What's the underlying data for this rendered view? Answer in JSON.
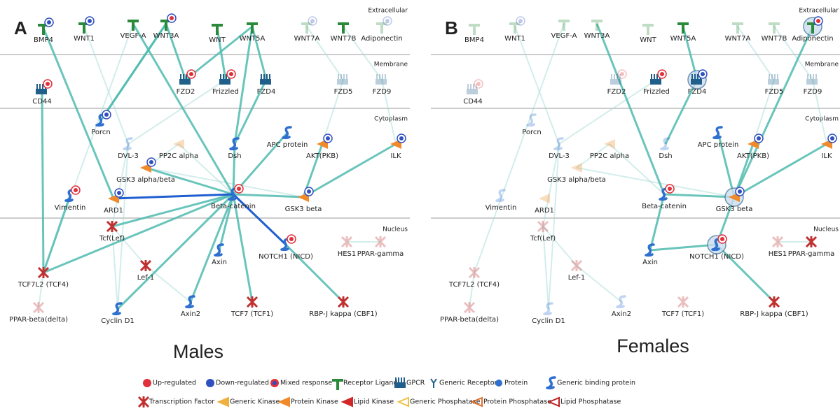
{
  "panels": [
    {
      "letter": "A",
      "caption": "Males",
      "compartments": [
        "Extracellular",
        "Membrane",
        "Cytoplasm",
        "Nucleus"
      ],
      "nodes": [
        {
          "label": "BMP4"
        },
        {
          "label": "WNT1"
        },
        {
          "label": "VEGF-A"
        },
        {
          "label": "WNT3A"
        },
        {
          "label": "WNT"
        },
        {
          "label": "WNT5A"
        },
        {
          "label": "WNT7A"
        },
        {
          "label": "WNT7B"
        },
        {
          "label": "Adiponectin"
        },
        {
          "label": "FZD2"
        },
        {
          "label": "Frizzled"
        },
        {
          "label": "FZD4"
        },
        {
          "label": "FZD5"
        },
        {
          "label": "FZD9"
        },
        {
          "label": "CD44"
        },
        {
          "label": "Porcn"
        },
        {
          "label": "DVL-3"
        },
        {
          "label": "PP2C alpha"
        },
        {
          "label": "Dsh"
        },
        {
          "label": "APC protein"
        },
        {
          "label": "AKT(PKB)"
        },
        {
          "label": "ILK"
        },
        {
          "label": "GSK3 alpha/beta"
        },
        {
          "label": "ARD1"
        },
        {
          "label": "Vimentin"
        },
        {
          "label": "Beta-catenin"
        },
        {
          "label": "GSK3 beta"
        },
        {
          "label": "Tcf(Lef)"
        },
        {
          "label": "NOTCH1 (NICD)"
        },
        {
          "label": "HES1"
        },
        {
          "label": "PPAR-gamma"
        },
        {
          "label": "Axin"
        },
        {
          "label": "Lef-1"
        },
        {
          "label": "TCF7L2 (TCF4)"
        },
        {
          "label": "Axin2"
        },
        {
          "label": "TCF7 (TCF1)"
        },
        {
          "label": "RBP-J kappa (CBF1)"
        },
        {
          "label": "PPAR-beta(delta)"
        },
        {
          "label": "Cyclin D1"
        }
      ]
    },
    {
      "letter": "B",
      "caption": "Females",
      "compartments": [
        "Extracellular",
        "Membrane",
        "Cytoplasm",
        "Nucleus"
      ],
      "nodes": [
        {
          "label": "BMP4"
        },
        {
          "label": "WNT1"
        },
        {
          "label": "VEGF-A"
        },
        {
          "label": "WNT3A"
        },
        {
          "label": "WNT"
        },
        {
          "label": "WNT5A"
        },
        {
          "label": "WNT7A"
        },
        {
          "label": "WNT7B"
        },
        {
          "label": "Adiponectin"
        },
        {
          "label": "FZD2"
        },
        {
          "label": "Frizzled"
        },
        {
          "label": "FZD4"
        },
        {
          "label": "FZD5"
        },
        {
          "label": "FZD9"
        },
        {
          "label": "CD44"
        },
        {
          "label": "Porcn"
        },
        {
          "label": "DVL-3"
        },
        {
          "label": "PP2C alpha"
        },
        {
          "label": "Dsh"
        },
        {
          "label": "APC protein"
        },
        {
          "label": "AKT(PKB)"
        },
        {
          "label": "ILK"
        },
        {
          "label": "GSK3 alpha/beta"
        },
        {
          "label": "ARD1"
        },
        {
          "label": "Vimentin"
        },
        {
          "label": "Beta-catenin"
        },
        {
          "label": "GSK3 beta"
        },
        {
          "label": "Tcf(Lef)"
        },
        {
          "label": "NOTCH1 (NICD)"
        },
        {
          "label": "HES1"
        },
        {
          "label": "PPAR-gamma"
        },
        {
          "label": "Axin"
        },
        {
          "label": "Lef-1"
        },
        {
          "label": "TCF7L2 (TCF4)"
        },
        {
          "label": "Axin2"
        },
        {
          "label": "TCF7 (TCF1)"
        },
        {
          "label": "RBP-J kappa (CBF1)"
        },
        {
          "label": "PPAR-beta(delta)"
        },
        {
          "label": "Cyclin D1"
        }
      ]
    }
  ],
  "legend": {
    "rows": [
      [
        "Up-regulated",
        "Down-regulated",
        "Mixed response",
        "Receptor Ligand",
        "GPCR",
        "Generic Receptor",
        "Protein",
        "Generic binding protein"
      ],
      [
        "Transcription Factor",
        "Generic Kinase",
        "Protein Kinase",
        "Lipid Kinase",
        "Generic Phosphatase",
        "Protein Phosphatase",
        "Lipid Phosphatase"
      ]
    ]
  }
}
